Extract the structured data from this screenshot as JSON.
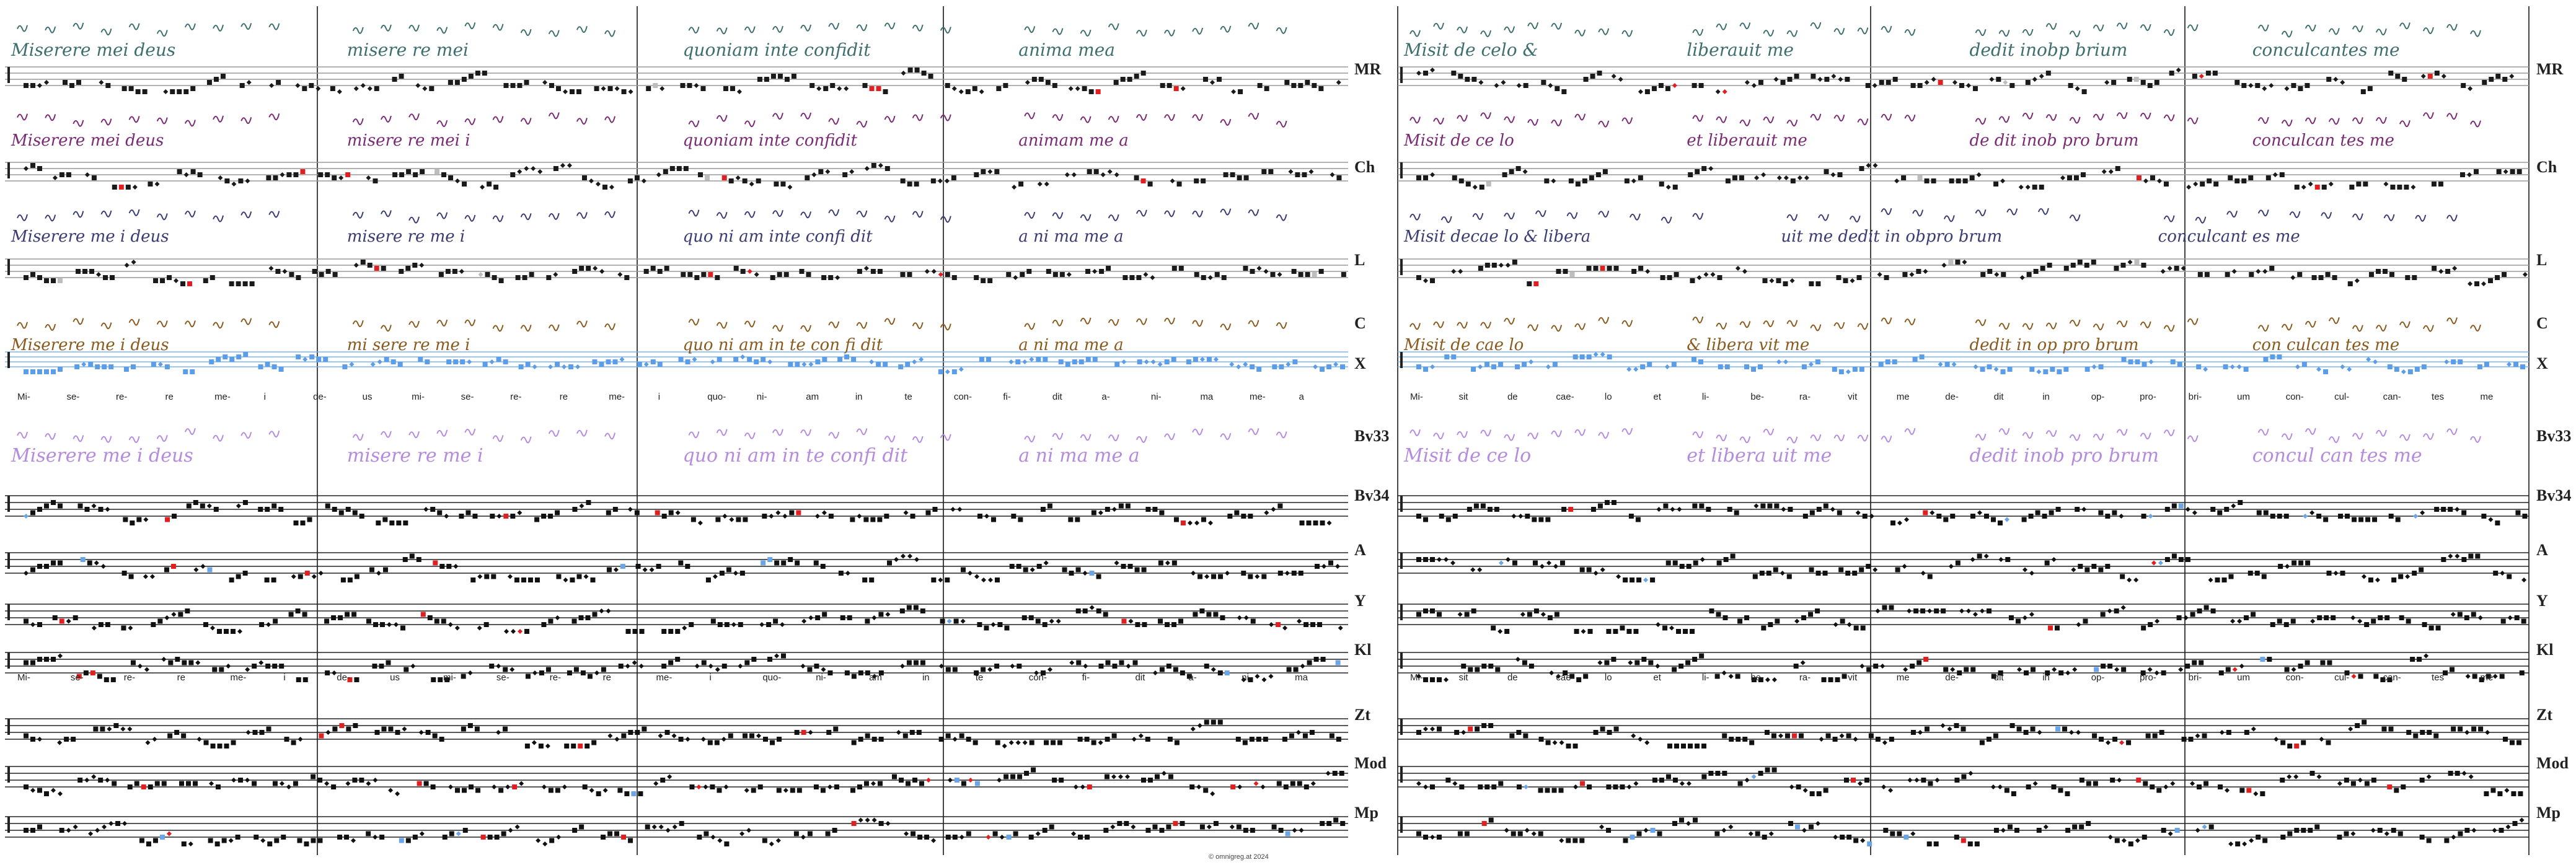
{
  "rows": [
    {
      "label": "MR",
      "kind": "grey-staff",
      "colour": "#3d6f6e"
    },
    {
      "label": "Ch",
      "kind": "grey-staff",
      "colour": "#7b2a76"
    },
    {
      "label": "L",
      "kind": "grey-staff",
      "colour": "#3b3c75"
    },
    {
      "label": "C",
      "kind": "blue-staff",
      "colour": "#8a5a1e"
    },
    {
      "label": "X",
      "kind": "blue-staff",
      "colour": "#5b9ae6"
    },
    {
      "label": "Bv33",
      "kind": "none",
      "colour": "#b58be0"
    },
    {
      "label": "Bv34",
      "kind": "black-staff",
      "colour": "#111111"
    },
    {
      "label": "A",
      "kind": "black-staff",
      "colour": "#111111"
    },
    {
      "label": "Y",
      "kind": "black-staff",
      "colour": "#111111"
    },
    {
      "label": "Kl",
      "kind": "black-staff",
      "colour": "#111111"
    },
    {
      "label": "Zt",
      "kind": "black-staff",
      "colour": "#111111"
    },
    {
      "label": "Mod",
      "kind": "black-staff",
      "colour": "#111111"
    },
    {
      "label": "Mp",
      "kind": "black-staff",
      "colour": "#111111"
    }
  ],
  "lyrics_left": [
    "Mi-",
    "se-",
    "re-",
    "re",
    "me-",
    "i",
    "de-",
    "us",
    "mi-",
    "se-",
    "re-",
    "re",
    "me-",
    "i",
    "quo-",
    "ni-",
    "am",
    "in",
    "te",
    "con-",
    "fi-",
    "dit",
    "a-",
    "ni-",
    "ma",
    "me-",
    "a"
  ],
  "lyrics_left_2": [
    "Mi-",
    "se-",
    "re-",
    "re",
    "me-",
    "i",
    "de-",
    "us",
    "mi-",
    "se-",
    "re-",
    "re",
    "me-",
    "i",
    "quo-",
    "ni-",
    "am",
    "in",
    "te",
    "con-",
    "fi-",
    "dit",
    "a-",
    "ni-",
    "ma"
  ],
  "lyrics_right": [
    "Mi-",
    "sit",
    "de",
    "cae-",
    "lo",
    "et",
    "li-",
    "be-",
    "ra-",
    "vit",
    "me",
    "de-",
    "dit",
    "in",
    "op-",
    "pro-",
    "bri-",
    "um",
    "con-",
    "cul-",
    "can-",
    "tes",
    "me"
  ],
  "manuscripts": {
    "MR": {
      "left": [
        "Miserere mei deus",
        "misere re mei",
        "quoniam inte confidit",
        "anima mea"
      ],
      "right": [
        "Misit de celo &",
        "liberauit me",
        "dedit inobp brium",
        "conculcantes me"
      ]
    },
    "Ch": {
      "left": [
        "Miserere mei deus",
        "misere re mei i",
        "quoniam inte confidit",
        "animam me a"
      ],
      "right": [
        "Misit de ce lo",
        "et liberauit me",
        "de dit inob pro brum",
        "conculcan tes me"
      ]
    },
    "L": {
      "left": [
        "Miserere me i deus",
        "misere re me i",
        "quo ni am inte confi dit",
        "a ni ma me a"
      ],
      "right": [
        "Misit decae lo & libera",
        "uit me dedit in obpro brum",
        "conculcant es me"
      ]
    },
    "C": {
      "left": [
        "Miserere me i deus",
        "mi sere re me i",
        "quo ni am in te con fi dit",
        "a ni ma me a"
      ],
      "right": [
        "Misit de cae lo",
        "& libera vit me",
        "dedit in op pro brum",
        "con culcan tes me"
      ]
    },
    "Bv33": {
      "left": [
        "Miserere me i deus",
        "misere re me i",
        "quo ni am in te confi dit",
        "a ni ma me a"
      ],
      "right": [
        "Misit de ce lo",
        "et libera uit me",
        "dedit inob pro brum",
        "concul can tes me"
      ]
    }
  },
  "copyright": "©  omnigreg.at   2024"
}
